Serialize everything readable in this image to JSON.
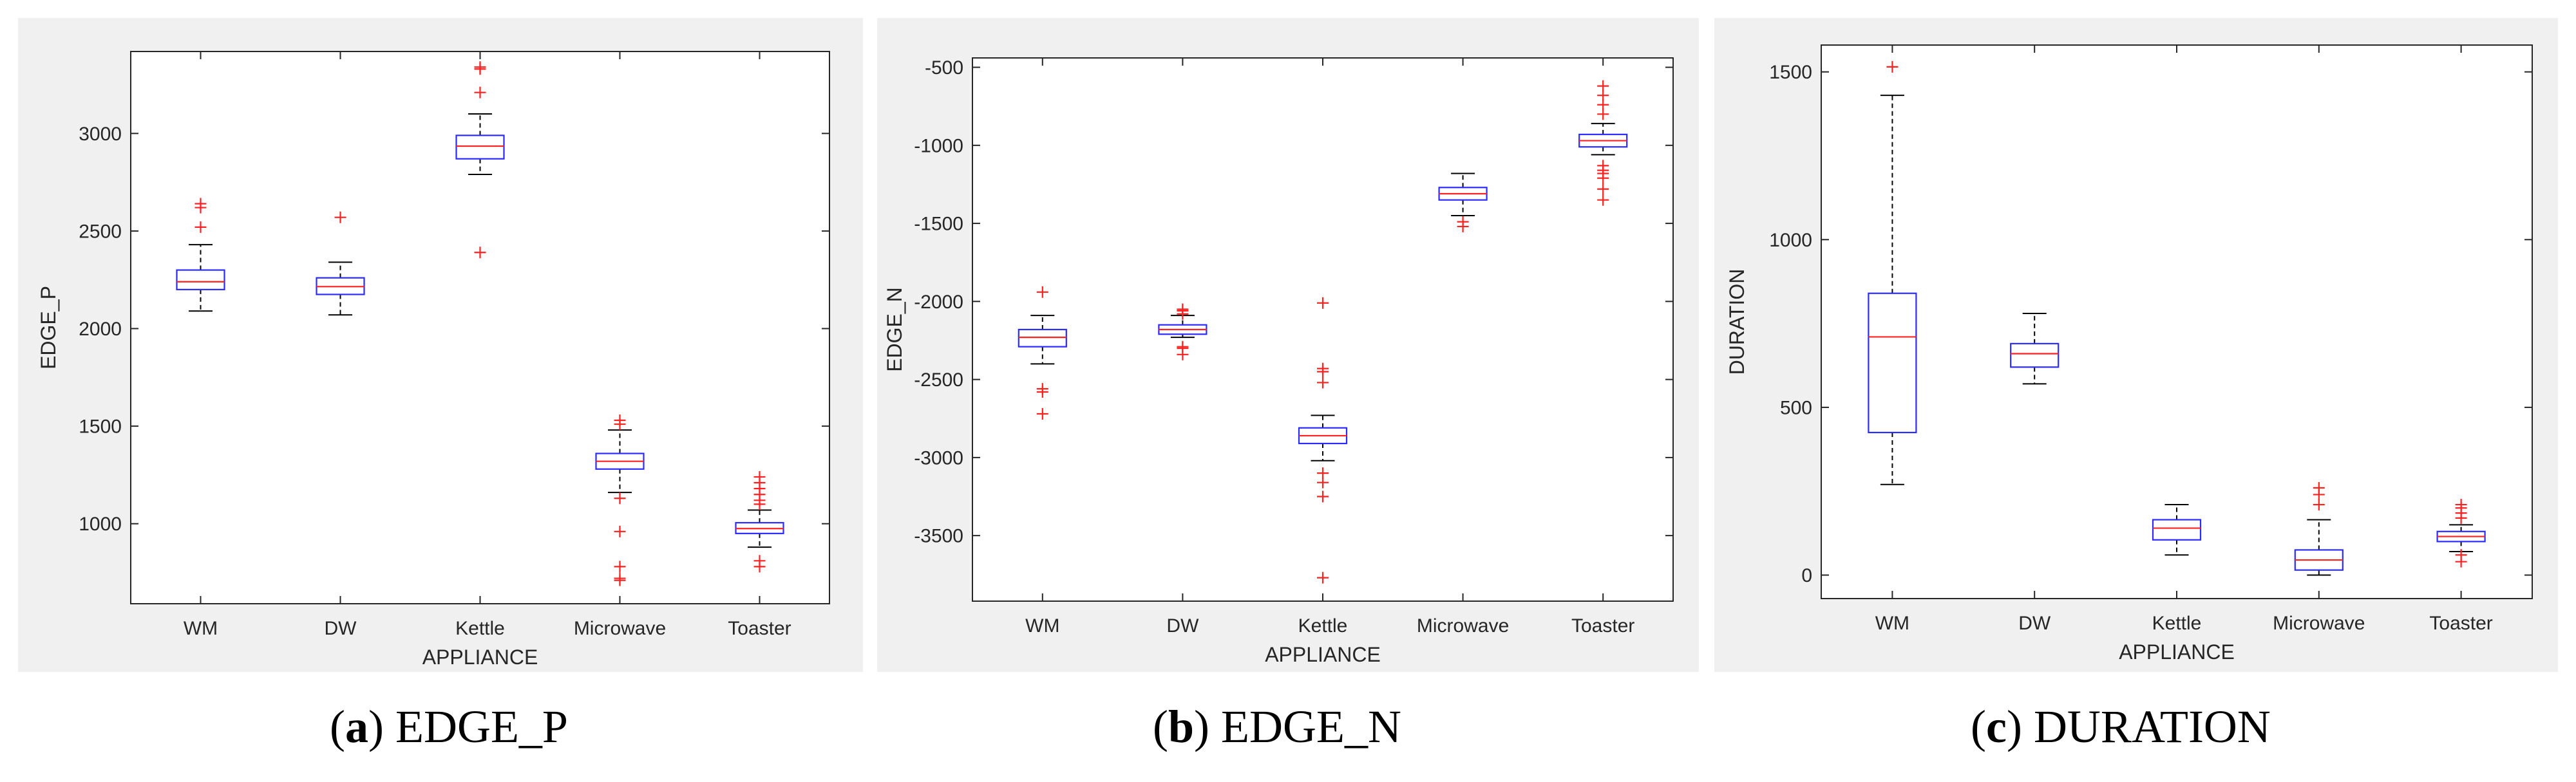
{
  "chart_data": [
    {
      "type": "box",
      "title": "EDGE_P",
      "caption_letter": "a",
      "xlabel": "APPLIANCE",
      "ylabel": "EDGE_P",
      "categories": [
        "WM",
        "DW",
        "Kettle",
        "Microwave",
        "Toaster"
      ],
      "ylim": [
        590,
        3420
      ],
      "yticks": [
        1000,
        1500,
        2000,
        2500,
        3000
      ],
      "ytick_labels": [
        "1000",
        "1500",
        "2000",
        "2500",
        "3000"
      ],
      "boxes": [
        {
          "whisker_low": 2090,
          "q1": 2200,
          "median": 2240,
          "q3": 2300,
          "whisker_high": 2430,
          "outliers": [
            2520,
            2620,
            2640
          ]
        },
        {
          "whisker_low": 2070,
          "q1": 2175,
          "median": 2215,
          "q3": 2260,
          "whisker_high": 2340,
          "outliers": [
            2570
          ]
        },
        {
          "whisker_low": 2790,
          "q1": 2870,
          "median": 2935,
          "q3": 2990,
          "whisker_high": 3100,
          "outliers": [
            2390,
            3210,
            3330,
            3340
          ]
        },
        {
          "whisker_low": 1160,
          "q1": 1280,
          "median": 1320,
          "q3": 1360,
          "whisker_high": 1480,
          "outliers": [
            960,
            780,
            720,
            710,
            1130,
            1510,
            1530
          ]
        },
        {
          "whisker_low": 880,
          "q1": 950,
          "median": 975,
          "q3": 1005,
          "whisker_high": 1070,
          "outliers": [
            780,
            810,
            1100,
            1120,
            1150,
            1180,
            1210,
            1240
          ]
        }
      ]
    },
    {
      "type": "box",
      "title": "EDGE_N",
      "caption_letter": "b",
      "xlabel": "APPLIANCE",
      "ylabel": "EDGE_N",
      "categories": [
        "WM",
        "DW",
        "Kettle",
        "Microwave",
        "Toaster"
      ],
      "ylim": [
        -3920,
        -440
      ],
      "yticks": [
        -3500,
        -3000,
        -2500,
        -2000,
        -1500,
        -1000,
        -500
      ],
      "ytick_labels": [
        "-3500",
        "-3000",
        "-2500",
        "-2000",
        "-1500",
        "-1000",
        "-500"
      ],
      "boxes": [
        {
          "whisker_low": -2400,
          "q1": -2290,
          "median": -2230,
          "q3": -2180,
          "whisker_high": -2090,
          "outliers": [
            -2560,
            -2580,
            -2720,
            -1940
          ]
        },
        {
          "whisker_low": -2230,
          "q1": -2210,
          "median": -2180,
          "q3": -2150,
          "whisker_high": -2090,
          "outliers": [
            -2050,
            -2060,
            -2080,
            -2290,
            -2300,
            -2340
          ]
        },
        {
          "whisker_low": -3020,
          "q1": -2910,
          "median": -2860,
          "q3": -2810,
          "whisker_high": -2730,
          "outliers": [
            -2010,
            -2430,
            -2450,
            -2520,
            -3100,
            -3160,
            -3250,
            -3770
          ]
        },
        {
          "whisker_low": -1450,
          "q1": -1350,
          "median": -1310,
          "q3": -1270,
          "whisker_high": -1180,
          "outliers": [
            -1490,
            -1520
          ]
        },
        {
          "whisker_low": -1060,
          "q1": -1010,
          "median": -970,
          "q3": -930,
          "whisker_high": -860,
          "outliers": [
            -620,
            -680,
            -740,
            -800,
            -1130,
            -1160,
            -1180,
            -1210,
            -1280,
            -1350
          ]
        }
      ]
    },
    {
      "type": "box",
      "title": "DURATION",
      "caption_letter": "c",
      "xlabel": "APPLIANCE",
      "ylabel": "DURATION",
      "categories": [
        "WM",
        "DW",
        "Kettle",
        "Microwave",
        "Toaster"
      ],
      "ylim": [
        -70,
        1580
      ],
      "yticks": [
        0,
        500,
        1000,
        1500
      ],
      "ytick_labels": [
        "0",
        "500",
        "1000",
        "1500"
      ],
      "boxes": [
        {
          "whisker_low": 270,
          "q1": 425,
          "median": 710,
          "q3": 840,
          "whisker_high": 1430,
          "outliers": [
            1515
          ]
        },
        {
          "whisker_low": 570,
          "q1": 620,
          "median": 660,
          "q3": 690,
          "whisker_high": 780,
          "outliers": []
        },
        {
          "whisker_low": 60,
          "q1": 105,
          "median": 140,
          "q3": 165,
          "whisker_high": 210,
          "outliers": []
        },
        {
          "whisker_low": 0,
          "q1": 15,
          "median": 45,
          "q3": 75,
          "whisker_high": 165,
          "outliers": [
            210,
            240,
            260
          ]
        },
        {
          "whisker_low": 70,
          "q1": 100,
          "median": 115,
          "q3": 130,
          "whisker_high": 150,
          "outliers": [
            40,
            60,
            170,
            185,
            200,
            210
          ]
        }
      ]
    }
  ]
}
